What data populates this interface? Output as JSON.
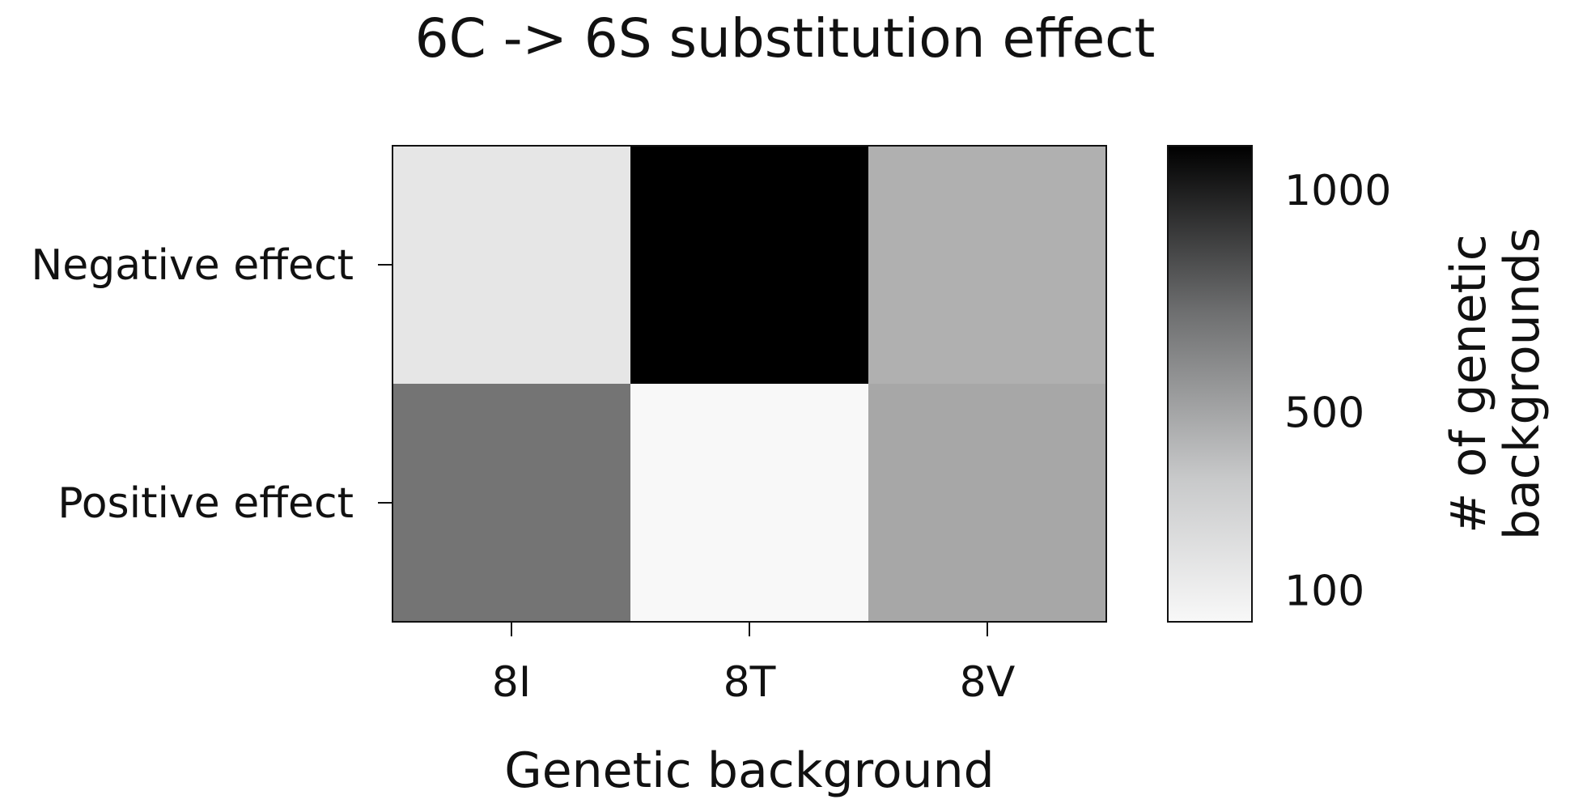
{
  "chart_data": {
    "type": "heatmap",
    "title": "6C -> 6S substitution effect",
    "xlabel": "Genetic background",
    "ylabel": "",
    "x_categories": [
      "8I",
      "8T",
      "8V"
    ],
    "y_categories": [
      "Negative effect",
      "Positive effect"
    ],
    "values": [
      [
        150,
        1100,
        450
      ],
      [
        700,
        30,
        490
      ]
    ],
    "colorbar": {
      "label": "# of genetic backgrounds",
      "label_lines": [
        "# of genetic",
        "backgrounds"
      ],
      "ticks": [
        100,
        500,
        1000
      ],
      "range": [
        30,
        1100
      ],
      "color_low": "#f8f8f8",
      "color_high": "#000000"
    },
    "grid": false,
    "legend": "right"
  }
}
